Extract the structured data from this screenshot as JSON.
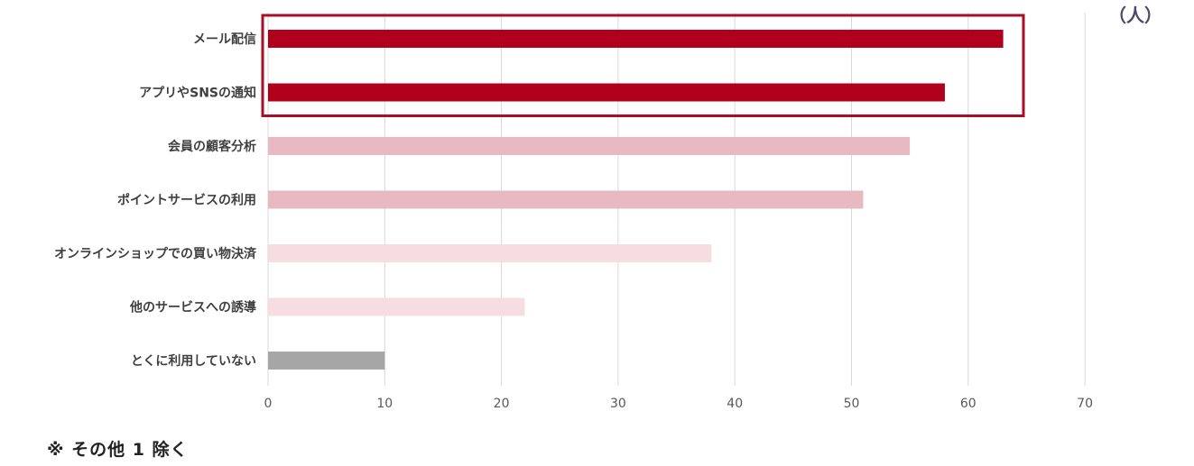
{
  "chart_data": {
    "type": "bar",
    "orientation": "horizontal",
    "categories": [
      "メール配信",
      "アプリやSNSの通知",
      "会員の顧客分析",
      "ポイントサービスの利用",
      "オンラインショップでの買い物決済",
      "他のサービスへの誘導",
      "とくに利用していない"
    ],
    "values": [
      63,
      58,
      55,
      51,
      38,
      22,
      10
    ],
    "bar_colors": [
      "#b0001c",
      "#b0001c",
      "#e8b8c3",
      "#e8b8c3",
      "#f5dde2",
      "#f5dde2",
      "#a6a6a6"
    ],
    "highlight_box_color": "#a80f24",
    "highlighted_categories": [
      "メール配信",
      "アプリやSNSの通知"
    ],
    "xlim": [
      0,
      70
    ],
    "x_ticks": [
      0,
      10,
      20,
      30,
      40,
      50,
      60,
      70
    ],
    "unit": "（人）",
    "grid": "vertical",
    "gridline_color": "#d9d9d9"
  },
  "footnote": "※ その他 1 除く"
}
